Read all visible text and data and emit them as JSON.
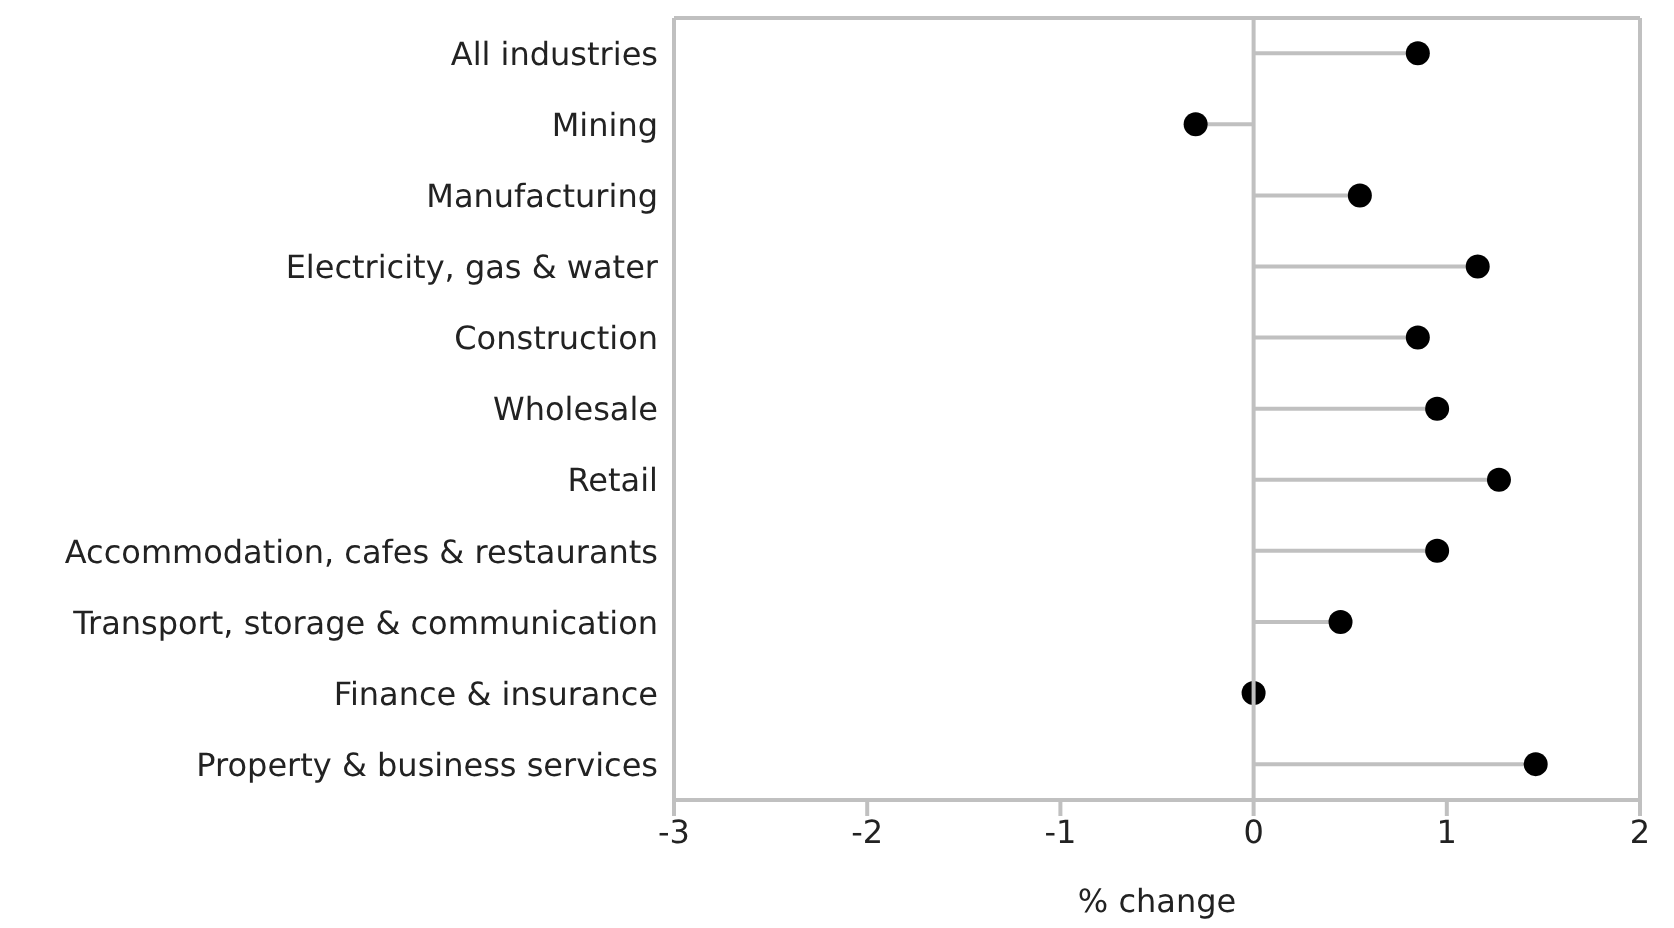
{
  "chart_data": {
    "type": "lollipop",
    "orientation": "horizontal",
    "xlabel": "% change",
    "categories": [
      "All industries",
      "Mining",
      "Manufacturing",
      "Electricity, gas & water",
      "Construction",
      "Wholesale",
      "Retail",
      "Accommodation, cafes & restaurants",
      "Transport, storage & communication",
      "Finance & insurance",
      "Property & business services"
    ],
    "values": [
      0.85,
      -0.3,
      0.55,
      1.16,
      0.85,
      0.95,
      1.27,
      0.95,
      0.45,
      0,
      1.46
    ],
    "color": "#000000",
    "marker": "circle",
    "xlim": [
      -3,
      2
    ],
    "xticks": [
      -3,
      -2,
      -1,
      0,
      1,
      2
    ],
    "ref_lines": [
      {
        "axis": "x",
        "value": 0,
        "color": "#c0c0c0"
      }
    ]
  }
}
